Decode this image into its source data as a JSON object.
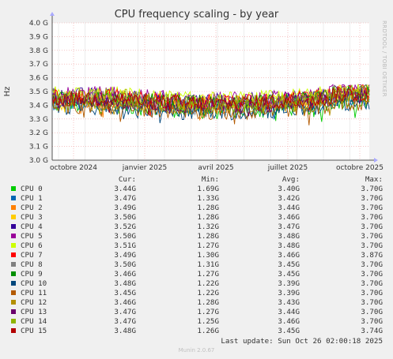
{
  "title": "CPU frequency scaling - by year",
  "side_label": "RRDTOOL / TOBI OETIKER",
  "footer": "Munin 2.0.67",
  "last_update": "Last update: Sun Oct 26 02:00:18 2025",
  "legend_headers": {
    "cur": "Cur:",
    "min": "Min:",
    "avg": "Avg:",
    "max": "Max:"
  },
  "chart_data": {
    "type": "line",
    "title": "CPU frequency scaling - by year",
    "ylabel": "Hz",
    "ylim": [
      3.0,
      4.0
    ],
    "y_ticks": [
      "3.0 G",
      "3.1 G",
      "3.2 G",
      "3.3 G",
      "3.4 G",
      "3.5 G",
      "3.6 G",
      "3.7 G",
      "3.8 G",
      "3.9 G",
      "4.0 G"
    ],
    "x_ticks": [
      "octobre 2024",
      "janvier 2025",
      "avril 2025",
      "juillet 2025",
      "octobre 2025"
    ],
    "grid": true,
    "series": [
      {
        "name": "CPU 0",
        "color": "#00cc00",
        "cur": "3.44G",
        "min": "1.69G",
        "avg": "3.40G",
        "max": "3.70G",
        "avg_value": 3.4
      },
      {
        "name": "CPU 1",
        "color": "#0066b3",
        "cur": "3.47G",
        "min": "1.33G",
        "avg": "3.42G",
        "max": "3.70G",
        "avg_value": 3.42
      },
      {
        "name": "CPU 2",
        "color": "#ff8000",
        "cur": "3.49G",
        "min": "1.28G",
        "avg": "3.44G",
        "max": "3.70G",
        "avg_value": 3.44
      },
      {
        "name": "CPU 3",
        "color": "#ffcc00",
        "cur": "3.50G",
        "min": "1.28G",
        "avg": "3.46G",
        "max": "3.70G",
        "avg_value": 3.46
      },
      {
        "name": "CPU 4",
        "color": "#330099",
        "cur": "3.52G",
        "min": "1.32G",
        "avg": "3.47G",
        "max": "3.70G",
        "avg_value": 3.47
      },
      {
        "name": "CPU 5",
        "color": "#990099",
        "cur": "3.50G",
        "min": "1.28G",
        "avg": "3.48G",
        "max": "3.70G",
        "avg_value": 3.48
      },
      {
        "name": "CPU 6",
        "color": "#ccff00",
        "cur": "3.51G",
        "min": "1.27G",
        "avg": "3.48G",
        "max": "3.70G",
        "avg_value": 3.48
      },
      {
        "name": "CPU 7",
        "color": "#ff0000",
        "cur": "3.49G",
        "min": "1.30G",
        "avg": "3.46G",
        "max": "3.87G",
        "avg_value": 3.46
      },
      {
        "name": "CPU 8",
        "color": "#808080",
        "cur": "3.50G",
        "min": "1.31G",
        "avg": "3.45G",
        "max": "3.70G",
        "avg_value": 3.45
      },
      {
        "name": "CPU 9",
        "color": "#008f00",
        "cur": "3.46G",
        "min": "1.27G",
        "avg": "3.45G",
        "max": "3.70G",
        "avg_value": 3.45
      },
      {
        "name": "CPU 10",
        "color": "#00487d",
        "cur": "3.48G",
        "min": "1.22G",
        "avg": "3.39G",
        "max": "3.70G",
        "avg_value": 3.39
      },
      {
        "name": "CPU 11",
        "color": "#b35a00",
        "cur": "3.45G",
        "min": "1.22G",
        "avg": "3.39G",
        "max": "3.70G",
        "avg_value": 3.39
      },
      {
        "name": "CPU 12",
        "color": "#b38f00",
        "cur": "3.46G",
        "min": "1.28G",
        "avg": "3.43G",
        "max": "3.70G",
        "avg_value": 3.43
      },
      {
        "name": "CPU 13",
        "color": "#6b006b",
        "cur": "3.47G",
        "min": "1.27G",
        "avg": "3.44G",
        "max": "3.70G",
        "avg_value": 3.44
      },
      {
        "name": "CPU 14",
        "color": "#8fb300",
        "cur": "3.47G",
        "min": "1.25G",
        "avg": "3.46G",
        "max": "3.70G",
        "avg_value": 3.46
      },
      {
        "name": "CPU 15",
        "color": "#b30000",
        "cur": "3.48G",
        "min": "1.26G",
        "avg": "3.45G",
        "max": "3.74G",
        "avg_value": 3.45
      }
    ]
  }
}
